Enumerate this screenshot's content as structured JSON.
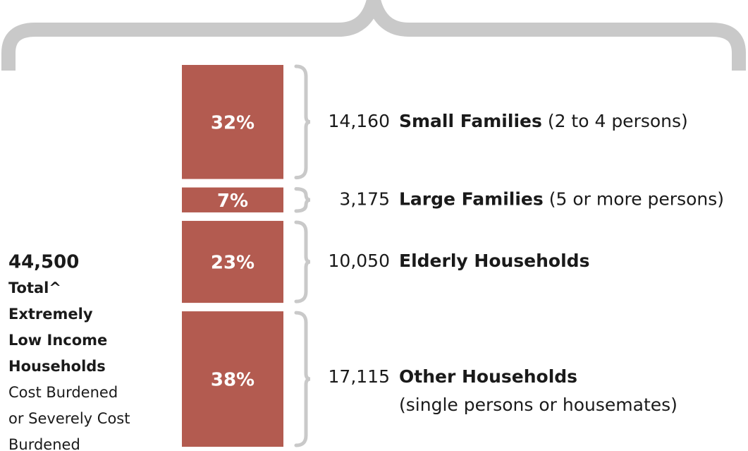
{
  "chart_data": {
    "type": "stacked-bar",
    "values": [
      32,
      7,
      23,
      38
    ],
    "value_labels": [
      "32%",
      "7%",
      "23%",
      "38%"
    ],
    "color": "#b35b50",
    "counts": [
      14160,
      3175,
      10050,
      17115
    ],
    "count_labels": [
      "14,160",
      "3,175",
      "10,050",
      "17,115"
    ],
    "names": [
      "Small Families",
      "Large Families",
      "Elderly Households",
      "Other Households"
    ],
    "details": [
      "(2 to 4 persons)",
      "(5 or more persons)",
      null,
      "(single persons or housemates)"
    ],
    "total": {
      "value": 44500,
      "label": "44,500"
    },
    "total_caption_bold": [
      "Total^",
      "Extremely",
      "Low Income",
      "Households"
    ],
    "total_caption": [
      "Cost Burdened",
      "or Severely Cost",
      "Burdened"
    ]
  }
}
